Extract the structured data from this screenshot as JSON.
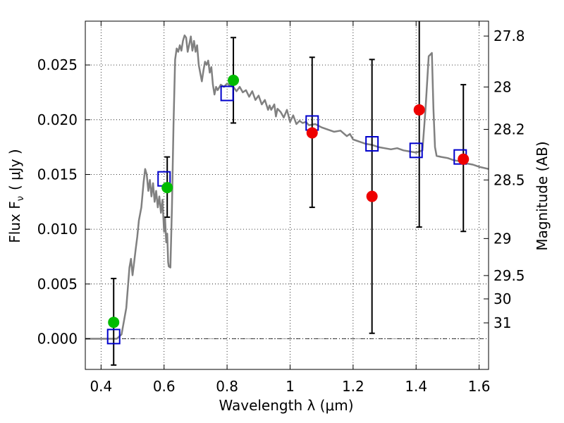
{
  "chart_data": {
    "type": "scatter",
    "xlabel": "Wavelength  λ (μm)",
    "ylabel": "Flux  F",
    "ylabel_sub": "ν",
    "ylabel_unit": "( μJy )",
    "y2label": "Magnitude (AB)",
    "xlim": [
      0.35,
      1.63
    ],
    "ylim": [
      -0.0028,
      0.029
    ],
    "grid": true,
    "x_ticks": [
      {
        "value": 0.4,
        "label": "0.4"
      },
      {
        "value": 0.6,
        "label": "0.6"
      },
      {
        "value": 0.8,
        "label": "0.8"
      },
      {
        "value": 1.0,
        "label": "1"
      },
      {
        "value": 1.2,
        "label": "1.2"
      },
      {
        "value": 1.4,
        "label": "1.4"
      },
      {
        "value": 1.6,
        "label": "1.6"
      }
    ],
    "y_ticks": [
      {
        "value": 0.0,
        "label": "0.000"
      },
      {
        "value": 0.005,
        "label": "0.005"
      },
      {
        "value": 0.01,
        "label": "0.010"
      },
      {
        "value": 0.015,
        "label": "0.015"
      },
      {
        "value": 0.02,
        "label": "0.020"
      },
      {
        "value": 0.025,
        "label": "0.025"
      }
    ],
    "y2_ticks": [
      {
        "label": "27.8",
        "flux": 0.02764
      },
      {
        "label": "28",
        "flux": 0.02299
      },
      {
        "label": "28.2",
        "flux": 0.01912
      },
      {
        "label": "28.5",
        "flux": 0.0145
      },
      {
        "label": "29",
        "flux": 0.00915
      },
      {
        "label": "29.5",
        "flux": 0.00577
      },
      {
        "label": "30",
        "flux": 0.00364
      },
      {
        "label": "31",
        "flux": 0.00145
      }
    ],
    "model_color": "#808080",
    "model": [
      [
        0.35,
        0.0
      ],
      [
        0.45,
        0.0
      ],
      [
        0.465,
        0.0004
      ],
      [
        0.48,
        0.0028
      ],
      [
        0.49,
        0.0065
      ],
      [
        0.495,
        0.0073
      ],
      [
        0.5,
        0.0058
      ],
      [
        0.505,
        0.007
      ],
      [
        0.51,
        0.0082
      ],
      [
        0.515,
        0.0093
      ],
      [
        0.52,
        0.0108
      ],
      [
        0.528,
        0.012
      ],
      [
        0.535,
        0.0143
      ],
      [
        0.54,
        0.0155
      ],
      [
        0.545,
        0.015
      ],
      [
        0.55,
        0.0135
      ],
      [
        0.555,
        0.0145
      ],
      [
        0.56,
        0.013
      ],
      [
        0.565,
        0.0142
      ],
      [
        0.57,
        0.0125
      ],
      [
        0.575,
        0.0135
      ],
      [
        0.58,
        0.012
      ],
      [
        0.585,
        0.013
      ],
      [
        0.59,
        0.0115
      ],
      [
        0.595,
        0.0127
      ],
      [
        0.6,
        0.0098
      ],
      [
        0.603,
        0.011
      ],
      [
        0.607,
        0.0088
      ],
      [
        0.61,
        0.0096
      ],
      [
        0.613,
        0.007
      ],
      [
        0.615,
        0.0066
      ],
      [
        0.62,
        0.0065
      ],
      [
        0.625,
        0.012
      ],
      [
        0.63,
        0.0195
      ],
      [
        0.635,
        0.0255
      ],
      [
        0.64,
        0.0265
      ],
      [
        0.645,
        0.0262
      ],
      [
        0.65,
        0.0268
      ],
      [
        0.655,
        0.0263
      ],
      [
        0.66,
        0.0272
      ],
      [
        0.665,
        0.0277
      ],
      [
        0.67,
        0.0275
      ],
      [
        0.675,
        0.0262
      ],
      [
        0.68,
        0.0269
      ],
      [
        0.685,
        0.0276
      ],
      [
        0.69,
        0.0263
      ],
      [
        0.695,
        0.0272
      ],
      [
        0.7,
        0.0262
      ],
      [
        0.705,
        0.0268
      ],
      [
        0.71,
        0.025
      ],
      [
        0.72,
        0.0235
      ],
      [
        0.725,
        0.0245
      ],
      [
        0.73,
        0.0253
      ],
      [
        0.735,
        0.025
      ],
      [
        0.74,
        0.0254
      ],
      [
        0.745,
        0.0243
      ],
      [
        0.75,
        0.0248
      ],
      [
        0.755,
        0.0232
      ],
      [
        0.76,
        0.0223
      ],
      [
        0.765,
        0.023
      ],
      [
        0.77,
        0.0227
      ],
      [
        0.78,
        0.0232
      ],
      [
        0.79,
        0.023
      ],
      [
        0.8,
        0.0233
      ],
      [
        0.81,
        0.0231
      ],
      [
        0.82,
        0.023
      ],
      [
        0.83,
        0.0226
      ],
      [
        0.84,
        0.023
      ],
      [
        0.85,
        0.0225
      ],
      [
        0.86,
        0.0227
      ],
      [
        0.87,
        0.0221
      ],
      [
        0.88,
        0.0226
      ],
      [
        0.89,
        0.0218
      ],
      [
        0.9,
        0.0222
      ],
      [
        0.91,
        0.0214
      ],
      [
        0.92,
        0.0218
      ],
      [
        0.93,
        0.0209
      ],
      [
        0.935,
        0.0213
      ],
      [
        0.94,
        0.0209
      ],
      [
        0.95,
        0.0214
      ],
      [
        0.955,
        0.0203
      ],
      [
        0.96,
        0.021
      ],
      [
        0.97,
        0.0207
      ],
      [
        0.98,
        0.0202
      ],
      [
        0.99,
        0.0209
      ],
      [
        1.0,
        0.0198
      ],
      [
        1.01,
        0.0204
      ],
      [
        1.02,
        0.0196
      ],
      [
        1.03,
        0.0199
      ],
      [
        1.04,
        0.0197
      ],
      [
        1.05,
        0.0198
      ],
      [
        1.06,
        0.0195
      ],
      [
        1.08,
        0.0196
      ],
      [
        1.1,
        0.0193
      ],
      [
        1.12,
        0.0191
      ],
      [
        1.14,
        0.0189
      ],
      [
        1.16,
        0.019
      ],
      [
        1.18,
        0.0185
      ],
      [
        1.19,
        0.0187
      ],
      [
        1.2,
        0.0182
      ],
      [
        1.22,
        0.018
      ],
      [
        1.24,
        0.0178
      ],
      [
        1.26,
        0.0177
      ],
      [
        1.28,
        0.0175
      ],
      [
        1.3,
        0.0174
      ],
      [
        1.32,
        0.0173
      ],
      [
        1.34,
        0.0174
      ],
      [
        1.36,
        0.0172
      ],
      [
        1.38,
        0.0171
      ],
      [
        1.4,
        0.017
      ],
      [
        1.42,
        0.0172
      ],
      [
        1.43,
        0.021
      ],
      [
        1.44,
        0.0258
      ],
      [
        1.45,
        0.0261
      ],
      [
        1.455,
        0.021
      ],
      [
        1.46,
        0.0175
      ],
      [
        1.465,
        0.0167
      ],
      [
        1.48,
        0.0166
      ],
      [
        1.5,
        0.0165
      ],
      [
        1.52,
        0.0163
      ],
      [
        1.54,
        0.0162
      ],
      [
        1.56,
        0.016
      ],
      [
        1.58,
        0.0159
      ],
      [
        1.6,
        0.0157
      ],
      [
        1.63,
        0.0155
      ]
    ],
    "errorbars": [
      {
        "x": 0.44,
        "y_low": -0.0024,
        "y_high": 0.0055
      },
      {
        "x": 0.61,
        "y_low": 0.0111,
        "y_high": 0.0166
      },
      {
        "x": 0.82,
        "y_low": 0.0197,
        "y_high": 0.0275
      },
      {
        "x": 1.07,
        "y_low": 0.012,
        "y_high": 0.0257
      },
      {
        "x": 1.26,
        "y_low": 0.0005,
        "y_high": 0.0255
      },
      {
        "x": 1.41,
        "y_low": 0.0102,
        "y_high": 0.03
      },
      {
        "x": 1.55,
        "y_low": 0.0098,
        "y_high": 0.0232
      }
    ],
    "model_points": {
      "color": "#0000cc",
      "points": [
        {
          "x": 0.44,
          "y": 0.0002
        },
        {
          "x": 0.6,
          "y": 0.0146
        },
        {
          "x": 0.8,
          "y": 0.0224
        },
        {
          "x": 1.07,
          "y": 0.0197
        },
        {
          "x": 1.26,
          "y": 0.0178
        },
        {
          "x": 1.4,
          "y": 0.0172
        },
        {
          "x": 1.54,
          "y": 0.0166
        }
      ]
    },
    "detections": {
      "color": "#00bb00",
      "points": [
        {
          "x": 0.44,
          "y": 0.0015
        },
        {
          "x": 0.61,
          "y": 0.0138
        },
        {
          "x": 0.82,
          "y": 0.0236
        }
      ]
    },
    "upper_points": {
      "color": "#ee0000",
      "points": [
        {
          "x": 1.07,
          "y": 0.0188
        },
        {
          "x": 1.26,
          "y": 0.013
        },
        {
          "x": 1.41,
          "y": 0.0209
        },
        {
          "x": 1.55,
          "y": 0.0164
        }
      ]
    }
  }
}
